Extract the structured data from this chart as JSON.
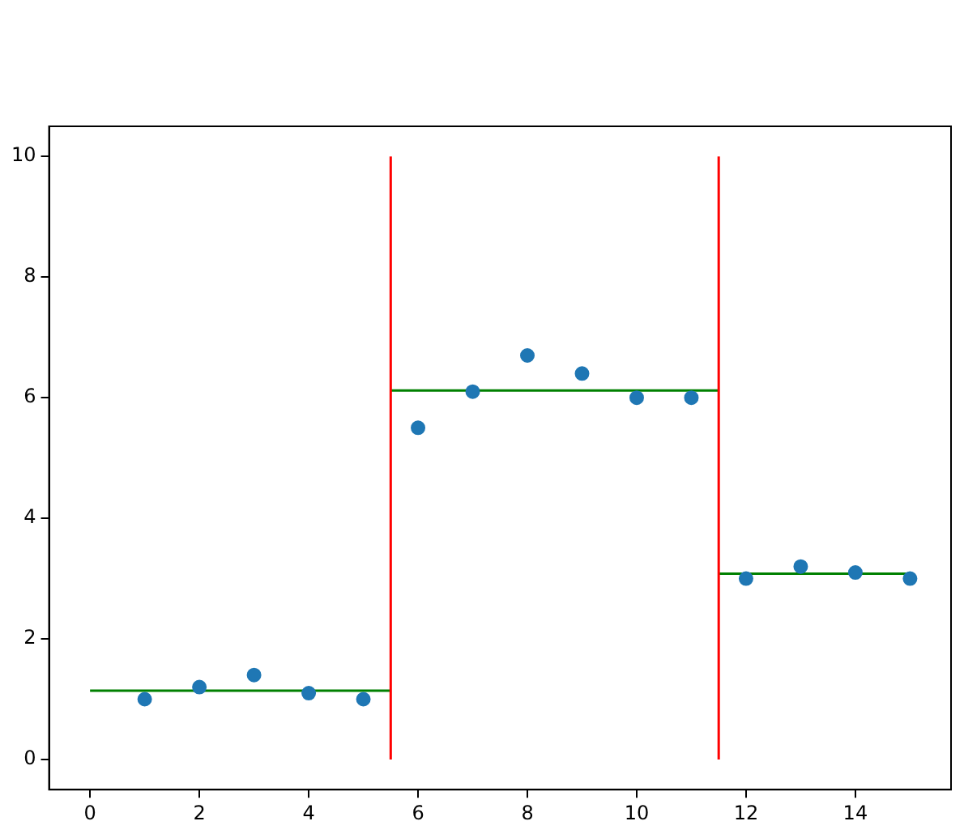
{
  "chart_data": {
    "type": "scatter",
    "xlim": [
      -0.75,
      15.75
    ],
    "ylim": [
      -0.5,
      10.5
    ],
    "xticks": [
      0,
      2,
      4,
      6,
      8,
      10,
      12,
      14
    ],
    "yticks": [
      0,
      2,
      4,
      6,
      8,
      10
    ],
    "grid": false,
    "legend": false,
    "series": [
      {
        "marker": "circle",
        "color": "#1f77b4",
        "x": [
          1,
          2,
          3,
          4,
          5,
          6,
          7,
          8,
          9,
          10,
          11,
          12,
          13,
          14,
          15
        ],
        "values": [
          1.0,
          1.2,
          1.4,
          1.1,
          1.0,
          5.5,
          6.1,
          6.7,
          6.4,
          6.0,
          6.0,
          3.0,
          3.2,
          3.1,
          3.0
        ]
      },
      {
        "type": "line",
        "marker": "none",
        "color": "#ff0000",
        "x": [
          5.5,
          5.5
        ],
        "values": [
          0,
          10
        ]
      },
      {
        "type": "line",
        "marker": "none",
        "color": "#ff0000",
        "x": [
          11.5,
          11.5
        ],
        "values": [
          0,
          10
        ]
      },
      {
        "type": "line",
        "marker": "none",
        "color": "#008000",
        "x": [
          0,
          5.5
        ],
        "values": [
          1.14,
          1.14
        ]
      },
      {
        "type": "line",
        "marker": "none",
        "color": "#008000",
        "x": [
          5.5,
          11.5
        ],
        "values": [
          6.12,
          6.12
        ]
      },
      {
        "type": "line",
        "marker": "none",
        "color": "#008000",
        "x": [
          11.5,
          15
        ],
        "values": [
          3.08,
          3.08
        ]
      }
    ]
  }
}
